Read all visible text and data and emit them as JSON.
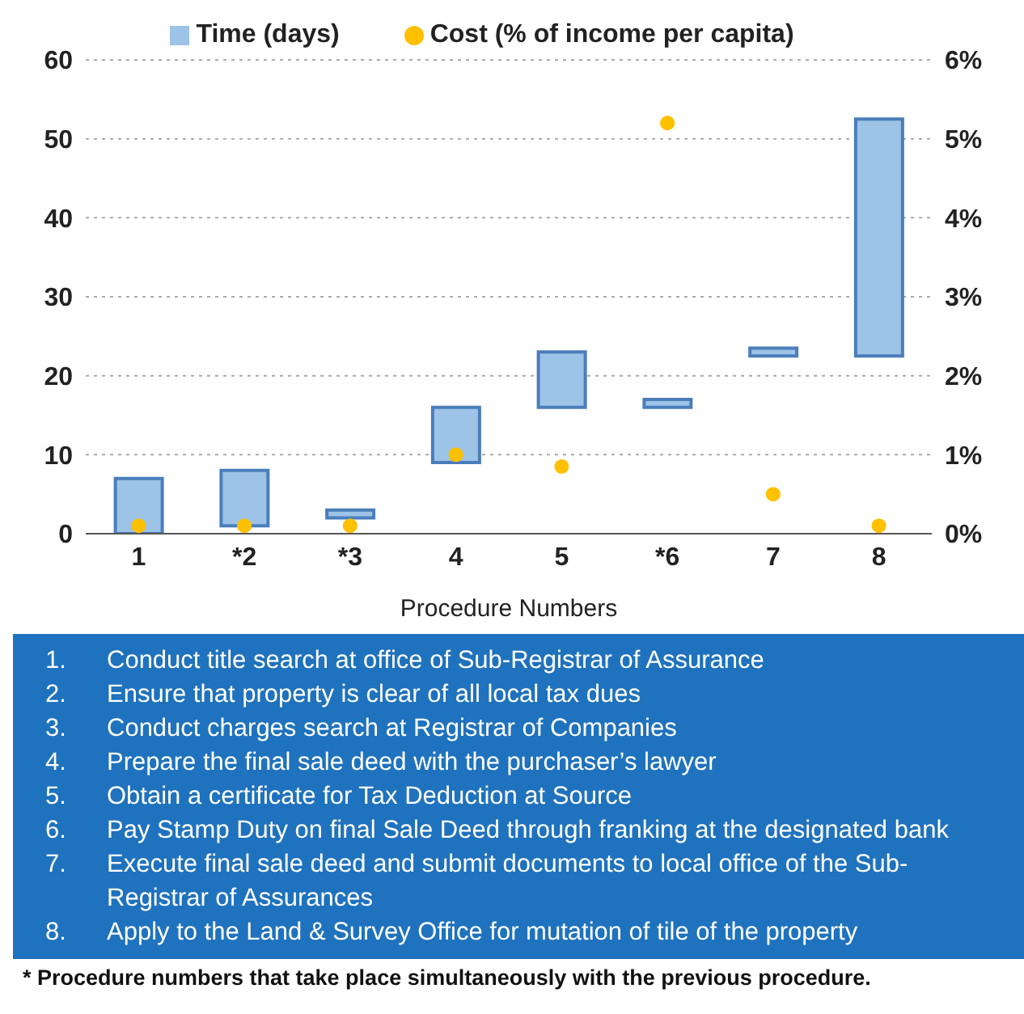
{
  "chart_data": {
    "type": "bar",
    "xlabel": "Procedure Numbers",
    "categories": [
      "1",
      "*2",
      "*3",
      "4",
      "5",
      "*6",
      "7",
      "8"
    ],
    "series": [
      {
        "name": "Time (days)",
        "color": "#9dc3e6",
        "base": [
          0,
          1,
          2,
          9,
          16,
          16,
          22.5,
          22.5
        ],
        "values": [
          7,
          7,
          1,
          7,
          7,
          1,
          1,
          30
        ]
      },
      {
        "name": "Cost (% of income per capita)",
        "type": "scatter",
        "axis": "y2",
        "color": "#ffc000",
        "values": [
          0.1,
          0.1,
          0.1,
          1.0,
          0.85,
          5.2,
          0.5,
          0.1
        ]
      }
    ],
    "ylim": [
      0,
      60
    ],
    "yticks": [
      0,
      10,
      20,
      30,
      40,
      50,
      60
    ],
    "y2lim": [
      0,
      6
    ],
    "y2ticks": [
      {
        "value": 0,
        "label": "0%"
      },
      {
        "value": 1,
        "label": "1%"
      },
      {
        "value": 2,
        "label": "2%"
      },
      {
        "value": 3,
        "label": "3%"
      },
      {
        "value": 4,
        "label": "4%"
      },
      {
        "value": 5,
        "label": "5%"
      },
      {
        "value": 6,
        "label": "6%"
      }
    ],
    "grid": "y",
    "legend": "top",
    "marker": "circle",
    "annotations": [
      "1. Conduct title search at office of Sub-Registrar of Assurance",
      "2. Ensure that property is clear of all local tax dues",
      "3. Conduct charges search at Registrar of Companies",
      "4. Prepare the final sale deed with the purchaser’s lawyer",
      "5. Obtain a certificate for Tax Deduction at Source",
      "6. Pay Stamp Duty on final Sale Deed through franking at the designated bank",
      "7. Execute final sale deed and submit documents to local office of the Sub-Registrar of Assurances",
      "8. Apply to the Land & Survey Office for mutation of tile of the property",
      "* Procedure numbers that take place simultaneously with the previous procedure."
    ]
  }
}
